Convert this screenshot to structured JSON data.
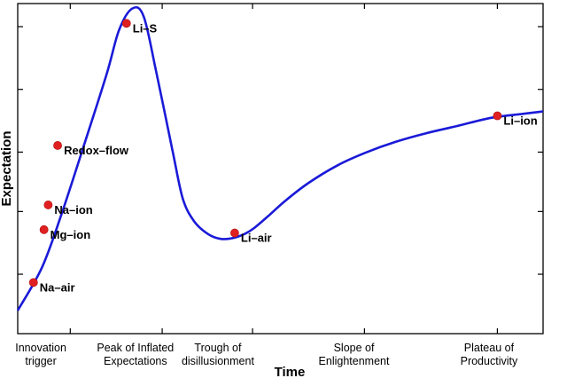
{
  "chart_data": {
    "type": "line",
    "title": "",
    "xlabel": "Time",
    "ylabel": "Expectation",
    "xlim": [
      0,
      100
    ],
    "ylim": [
      0,
      100
    ],
    "grid": false,
    "legend": "none",
    "series_color": "#1a1ad8",
    "point_color": "#e02020",
    "x_ticks": [
      10,
      27.5,
      44.7,
      66,
      91.3
    ],
    "y_ticks": [
      18,
      37,
      55,
      74,
      93
    ],
    "x": [
      0,
      4.6,
      8.3,
      12.8,
      17.0,
      19.3,
      21.8,
      24.0,
      26.4,
      29.4,
      31.4,
      33.6,
      36.2,
      38.6,
      41.1,
      43.3,
      45.0,
      47.6,
      50.9,
      55.4,
      60.9,
      66.2,
      71.9,
      77.7,
      83.9,
      90.2,
      96.3,
      100
    ],
    "y": [
      7,
      20,
      36,
      58,
      79,
      92,
      98.5,
      96,
      79,
      56,
      41,
      34,
      30.2,
      28.7,
      29,
      30.3,
      32,
      35.5,
      40.2,
      45.7,
      51,
      54.8,
      58.1,
      60.7,
      63,
      65.4,
      66.6,
      67.3
    ],
    "points": [
      {
        "label": "Na–air",
        "x": 3.0,
        "y": 15.5
      },
      {
        "label": "Mg–ion",
        "x": 5.0,
        "y": 31.5
      },
      {
        "label": "Na–ion",
        "x": 5.8,
        "y": 39.0
      },
      {
        "label": "Redox–flow",
        "x": 7.6,
        "y": 57.0
      },
      {
        "label": "Li–S",
        "x": 20.7,
        "y": 94.0
      },
      {
        "label": "Li–air",
        "x": 41.3,
        "y": 30.5
      },
      {
        "label": "Li–ion",
        "x": 91.3,
        "y": 66.0
      }
    ],
    "phases": [
      {
        "x": 4.4,
        "lines": [
          "Innovation",
          "trigger"
        ]
      },
      {
        "x": 22.4,
        "lines": [
          "Peak of Inflated",
          "Expectations"
        ]
      },
      {
        "x": 38.1,
        "lines": [
          "Trough of",
          "disillusionment"
        ]
      },
      {
        "x": 64.0,
        "lines": [
          "Slope of",
          "Enlightenment"
        ]
      },
      {
        "x": 89.7,
        "lines": [
          "Plateau of",
          "Productivity"
        ]
      }
    ]
  }
}
